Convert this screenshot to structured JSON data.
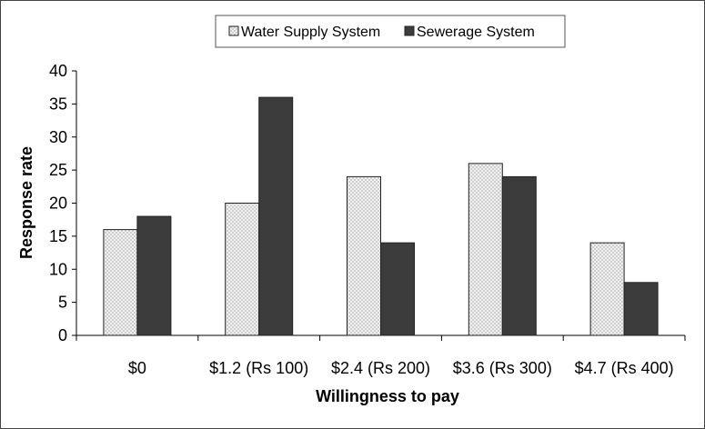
{
  "chart_data": {
    "type": "bar",
    "title": "",
    "xlabel": "Willingness to pay",
    "ylabel": "Response rate",
    "categories": [
      "$0",
      "$1.2 (Rs 100)",
      "$2.4 (Rs 200)",
      "$3.6 (Rs 300)",
      "$4.7 (Rs 400)"
    ],
    "series": [
      {
        "name": "Water Supply System",
        "values": [
          16,
          20,
          24,
          26,
          14
        ],
        "color": "#ececec",
        "pattern": "dotted"
      },
      {
        "name": "Sewerage System",
        "values": [
          18,
          36,
          14,
          24,
          8
        ],
        "color": "#3c3c3c",
        "pattern": "solid"
      }
    ],
    "ylim": [
      0,
      40
    ],
    "yticks": [
      0,
      5,
      10,
      15,
      20,
      25,
      30,
      35,
      40
    ],
    "grid": false,
    "legend_position": "top-center"
  }
}
